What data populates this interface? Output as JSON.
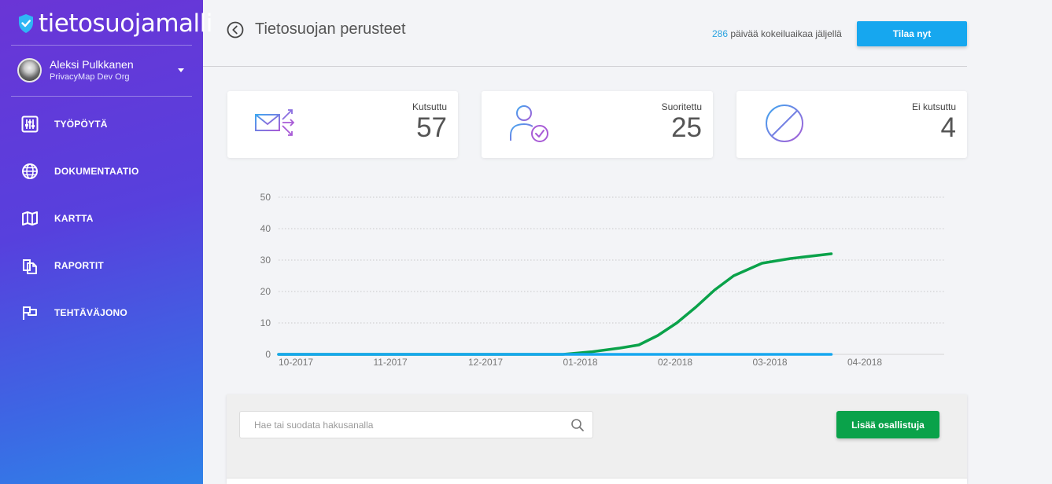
{
  "app": {
    "logo_text": "tietosuojamalli"
  },
  "user": {
    "name": "Aleksi Pulkkanen",
    "org": "PrivacyMap Dev Org"
  },
  "sidebar": {
    "items": [
      {
        "label": "TYÖPÖYTÄ",
        "icon": "dashboard-sliders-icon"
      },
      {
        "label": "DOKUMENTAATIO",
        "icon": "globe-icon"
      },
      {
        "label": "KARTTA",
        "icon": "map-icon"
      },
      {
        "label": "RAPORTIT",
        "icon": "reports-icon"
      },
      {
        "label": "TEHTÄVÄJONO",
        "icon": "flag-queue-icon"
      }
    ]
  },
  "header": {
    "title": "Tietosuojan perusteet",
    "trial_days": "286",
    "trial_text": " päivää kokeiluaikaa jäljellä",
    "order_button": "Tilaa nyt"
  },
  "stats": [
    {
      "label": "Kutsuttu",
      "value": "57",
      "icon": "mail-send-icon"
    },
    {
      "label": "Suoritettu",
      "value": "25",
      "icon": "user-check-icon"
    },
    {
      "label": "Ei kutsuttu",
      "value": "4",
      "icon": "prohibited-icon"
    }
  ],
  "chart_data": {
    "type": "line",
    "x_labels": [
      "10-2017",
      "11-2017",
      "12-2017",
      "01-2018",
      "02-2018",
      "03-2018",
      "04-2018"
    ],
    "ylim": [
      0,
      50
    ],
    "y_ticks": [
      0,
      10,
      20,
      30,
      40,
      50
    ],
    "grid": true,
    "series": [
      {
        "color": "#0aa24a",
        "points": [
          [
            0,
            0
          ],
          [
            1,
            0
          ],
          [
            2,
            0
          ],
          [
            3,
            0
          ],
          [
            3.3,
            0.8
          ],
          [
            3.6,
            2
          ],
          [
            3.8,
            3
          ],
          [
            4.0,
            6
          ],
          [
            4.2,
            10
          ],
          [
            4.4,
            15
          ],
          [
            4.6,
            20.5
          ],
          [
            4.8,
            25
          ],
          [
            5.1,
            29
          ],
          [
            5.4,
            30.5
          ],
          [
            5.83,
            32
          ]
        ]
      },
      {
        "color": "#16a7ef",
        "points": [
          [
            0,
            0
          ],
          [
            5.83,
            0
          ]
        ]
      }
    ]
  },
  "participants": {
    "search_placeholder": "Hae tai suodata hakusanalla",
    "add_button": "Lisää osallistuja"
  },
  "colors": {
    "sidebar_top": "#6a35d6",
    "sidebar_bottom": "#2f82e8",
    "accent_blue": "#16a7ef",
    "accent_green": "#0aa24a"
  }
}
